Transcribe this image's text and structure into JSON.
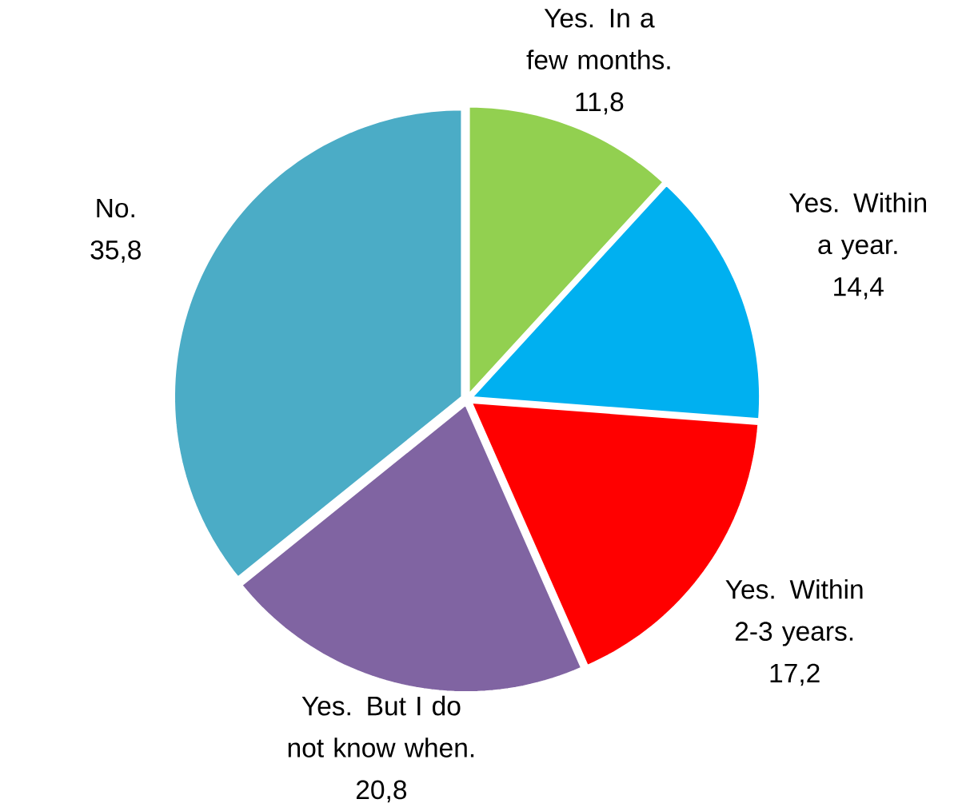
{
  "chart_data": {
    "type": "pie",
    "categories": [
      "Yes. In a few months.",
      "Yes. Within a year.",
      "Yes. Within 2-3 years.",
      "Yes. But I do not know when.",
      "No."
    ],
    "values": [
      11.8,
      14.4,
      17.2,
      20.8,
      35.8
    ],
    "value_labels": [
      "11,8",
      "14,4",
      "17,2",
      "20,8",
      "35,8"
    ],
    "colors": [
      "#92d050",
      "#00b0f0",
      "#ff0000",
      "#8064a2",
      "#4bacc6"
    ]
  }
}
